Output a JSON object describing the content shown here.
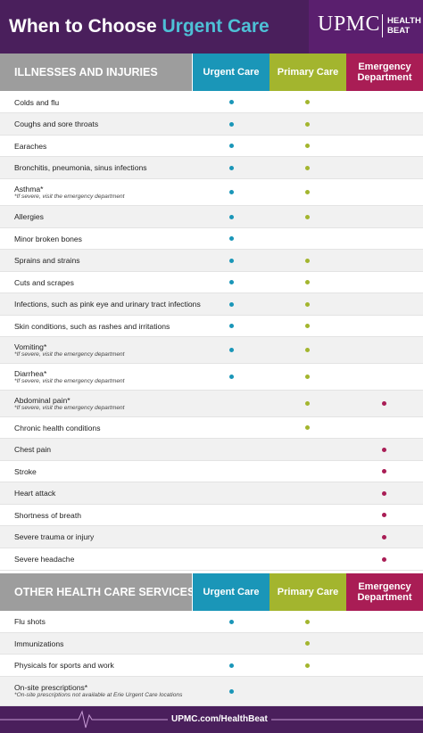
{
  "header": {
    "title_prefix": "When to Choose",
    "title_accent": "Urgent Care",
    "brand": "UPMC",
    "brand_sub_1": "HEALTH",
    "brand_sub_2": "BEAT"
  },
  "colors": {
    "header_bg": "#4a1f5c",
    "urgent": "#1a96b8",
    "primary": "#a3b52e",
    "emergency": "#a91d55",
    "section_gray": "#9d9d9d"
  },
  "columns": {
    "urgent": "Urgent Care",
    "primary": "Primary Care",
    "emergency": "Emergency Department"
  },
  "section1": {
    "title": "ILLNESSES AND INJURIES",
    "rows": [
      {
        "label": "Colds and flu",
        "note": "",
        "u": true,
        "p": true,
        "e": false
      },
      {
        "label": "Coughs and sore throats",
        "note": "",
        "u": true,
        "p": true,
        "e": false
      },
      {
        "label": "Earaches",
        "note": "",
        "u": true,
        "p": true,
        "e": false
      },
      {
        "label": "Bronchitis, pneumonia, sinus infections",
        "note": "",
        "u": true,
        "p": true,
        "e": false
      },
      {
        "label": "Asthma*",
        "note": "*If severe, visit the emergency department",
        "u": true,
        "p": true,
        "e": false
      },
      {
        "label": "Allergies",
        "note": "",
        "u": true,
        "p": true,
        "e": false
      },
      {
        "label": "Minor broken bones",
        "note": "",
        "u": true,
        "p": false,
        "e": false
      },
      {
        "label": "Sprains and strains",
        "note": "",
        "u": true,
        "p": true,
        "e": false
      },
      {
        "label": "Cuts and scrapes",
        "note": "",
        "u": true,
        "p": true,
        "e": false
      },
      {
        "label": "Infections, such as pink eye and urinary tract infections",
        "note": "",
        "u": true,
        "p": true,
        "e": false
      },
      {
        "label": "Skin conditions, such as rashes and irritations",
        "note": "",
        "u": true,
        "p": true,
        "e": false
      },
      {
        "label": "Vomiting*",
        "note": "*If severe, visit the emergency department",
        "u": true,
        "p": true,
        "e": false
      },
      {
        "label": "Diarrhea*",
        "note": "*If severe, visit the emergency department",
        "u": true,
        "p": true,
        "e": false
      },
      {
        "label": "Abdominal pain*",
        "note": "*If severe, visit the emergency department",
        "u": false,
        "p": true,
        "e": true
      },
      {
        "label": "Chronic health conditions",
        "note": "",
        "u": false,
        "p": true,
        "e": false
      },
      {
        "label": "Chest pain",
        "note": "",
        "u": false,
        "p": false,
        "e": true
      },
      {
        "label": "Stroke",
        "note": "",
        "u": false,
        "p": false,
        "e": true
      },
      {
        "label": "Heart attack",
        "note": "",
        "u": false,
        "p": false,
        "e": true
      },
      {
        "label": "Shortness of breath",
        "note": "",
        "u": false,
        "p": false,
        "e": true
      },
      {
        "label": "Severe trauma or injury",
        "note": "",
        "u": false,
        "p": false,
        "e": true
      },
      {
        "label": "Severe headache",
        "note": "",
        "u": false,
        "p": false,
        "e": true
      }
    ]
  },
  "section2": {
    "title": "OTHER HEALTH CARE SERVICES",
    "rows": [
      {
        "label": "Flu shots",
        "note": "",
        "u": true,
        "p": true,
        "e": false
      },
      {
        "label": "Immunizations",
        "note": "",
        "u": false,
        "p": true,
        "e": false
      },
      {
        "label": "Physicals for sports and work",
        "note": "",
        "u": true,
        "p": true,
        "e": false
      },
      {
        "label": "On-site prescriptions*",
        "note": "*On-site prescriptions not available at Erie Urgent Care locations",
        "u": true,
        "p": false,
        "e": false
      }
    ]
  },
  "footer": {
    "url": "UPMC.com/HealthBeat"
  }
}
